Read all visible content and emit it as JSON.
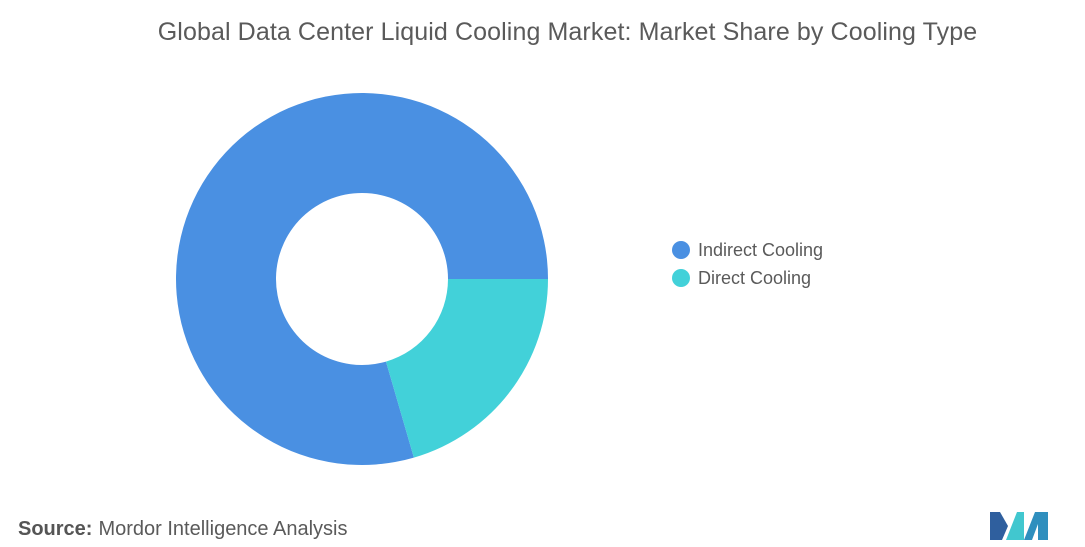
{
  "chart_data": {
    "type": "pie",
    "donut": true,
    "title": "Global Data Center Liquid Cooling Market: Market Share by Cooling Type",
    "labels": [
      "Indirect Cooling",
      "Direct Cooling"
    ],
    "values": [
      79.5,
      20.5
    ],
    "colors": [
      "#4a90e2",
      "#42d1d9"
    ],
    "legend_position": "right"
  },
  "source": {
    "label": "Source:",
    "text": "Mordor Intelligence Analysis"
  },
  "logo": {
    "icon": "mordor-intelligence-logo-icon",
    "colors": [
      "#2f5f9e",
      "#41c7cf"
    ]
  }
}
